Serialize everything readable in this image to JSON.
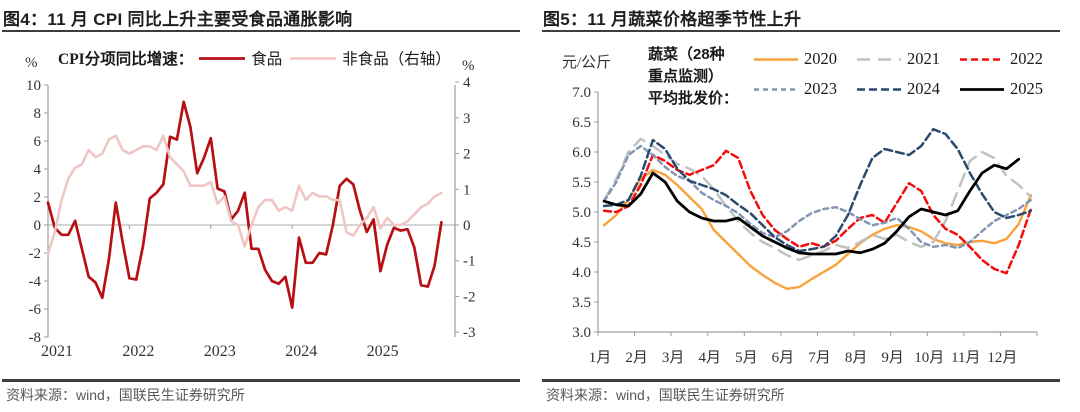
{
  "chart_data": [
    {
      "id": "cpi",
      "type": "line",
      "title": "图4：11 月 CPI 同比上升主要受食品通胀影响",
      "legend_title": "CPI分项同比增速：",
      "source": "资料来源：wind，国联民生证券研究所",
      "left_axis": {
        "unit": "%",
        "min": -8,
        "max": 10,
        "ticks": [
          10,
          8,
          6,
          4,
          2,
          0,
          -2,
          -4,
          -6,
          -8
        ]
      },
      "right_axis": {
        "unit": "%",
        "min": -3,
        "max": 4,
        "ticks": [
          4,
          3,
          2,
          1,
          0,
          -1,
          -2,
          -3
        ]
      },
      "x_ticks": [
        "2021",
        "2022",
        "2023",
        "2024",
        "2025"
      ],
      "x_note": "monthly values Jan-2021 through Nov-2025",
      "series": [
        {
          "name": "食品",
          "axis": "left",
          "color": "#B80F12",
          "width": 2.7,
          "dash": null,
          "values": [
            1.6,
            -0.2,
            -0.7,
            -0.7,
            0.3,
            -1.7,
            -3.7,
            -4.1,
            -5.2,
            -2.4,
            1.6,
            -1.2,
            -3.8,
            -3.9,
            -1.5,
            1.9,
            2.3,
            2.9,
            6.3,
            6.1,
            8.8,
            7.0,
            3.7,
            4.8,
            6.2,
            2.6,
            2.4,
            0.4,
            1.0,
            2.3,
            -1.7,
            -1.7,
            -3.2,
            -4.0,
            -4.2,
            -3.7,
            -5.9,
            -0.9,
            -2.7,
            -2.7,
            -2.0,
            -2.1,
            0.0,
            2.8,
            3.3,
            2.9,
            1.0,
            -0.5,
            0.4,
            -3.3,
            -1.4,
            -0.2,
            -0.4,
            -0.3,
            -1.6,
            -4.3,
            -4.4,
            -2.9,
            0.2
          ]
        },
        {
          "name": "非食品（右轴）",
          "axis": "right",
          "color": "#F0C6C4",
          "width": 2.6,
          "dash": null,
          "values": [
            -0.8,
            -0.2,
            0.7,
            1.3,
            1.6,
            1.7,
            2.1,
            1.9,
            2.0,
            2.4,
            2.5,
            2.1,
            2.0,
            2.1,
            2.2,
            2.2,
            2.1,
            2.5,
            1.9,
            1.7,
            1.5,
            1.1,
            1.1,
            1.1,
            1.2,
            0.6,
            0.8,
            0.1,
            0.0,
            -0.6,
            0.0,
            0.5,
            0.7,
            0.7,
            0.4,
            0.5,
            0.4,
            1.1,
            0.7,
            0.9,
            0.8,
            0.8,
            0.7,
            0.7,
            -0.2,
            -0.3,
            0.0,
            0.2,
            0.5,
            -0.1,
            0.2,
            0.0,
            0.0,
            0.1,
            0.3,
            0.5,
            0.6,
            0.8,
            0.9
          ]
        }
      ]
    },
    {
      "id": "veg",
      "type": "line",
      "title": "图5：11 月蔬菜价格超季节性上升",
      "legend_title": "蔬菜（28种重点监测）平均批发价：",
      "legend_title_lines": [
        "蔬菜（28种",
        "重点监测）",
        "平均批发价："
      ],
      "source": "资料来源：wind，国联民生证券研究所",
      "y_axis": {
        "unit": "元/公斤",
        "min": 3.0,
        "max": 7.0,
        "ticks": [
          7.0,
          6.5,
          6.0,
          5.5,
          5.0,
          4.5,
          4.0,
          3.5,
          3.0
        ]
      },
      "x_ticks": [
        "1月",
        "2月",
        "3月",
        "4月",
        "5月",
        "6月",
        "7月",
        "8月",
        "9月",
        "10月",
        "11月",
        "12月"
      ],
      "x_note": "approx. 3 readings per month (10-day averages), yuan per kg",
      "series": [
        {
          "name": "2020",
          "color": "#F9A23C",
          "width": 2.4,
          "dash": null,
          "values": [
            4.78,
            4.95,
            5.2,
            5.55,
            5.7,
            5.62,
            5.45,
            5.25,
            5.05,
            4.7,
            4.5,
            4.3,
            4.1,
            3.95,
            3.82,
            3.72,
            3.75,
            3.88,
            4.0,
            4.12,
            4.3,
            4.48,
            4.62,
            4.72,
            4.78,
            4.75,
            4.68,
            4.55,
            4.48,
            4.45,
            4.5,
            4.52,
            4.48,
            4.55,
            4.8,
            5.28
          ]
        },
        {
          "name": "2021",
          "color": "#C1C1C1",
          "width": 2.5,
          "dash": "13 8",
          "values": [
            5.2,
            5.55,
            6.0,
            6.22,
            6.1,
            5.95,
            5.8,
            5.72,
            5.6,
            5.38,
            5.1,
            4.85,
            4.65,
            4.5,
            4.4,
            4.28,
            4.2,
            4.28,
            4.35,
            4.45,
            4.4,
            4.5,
            4.62,
            4.55,
            4.62,
            4.5,
            4.42,
            4.5,
            4.85,
            5.35,
            5.85,
            6.0,
            5.9,
            5.6,
            5.45,
            5.25
          ]
        },
        {
          "name": "2022",
          "color": "#F20D0D",
          "width": 2.5,
          "dash": "7 4",
          "values": [
            5.02,
            5.0,
            5.1,
            5.45,
            5.95,
            5.85,
            5.7,
            5.62,
            5.7,
            5.78,
            6.02,
            5.9,
            5.35,
            4.95,
            4.7,
            4.55,
            4.42,
            4.48,
            4.42,
            4.52,
            4.72,
            4.9,
            4.95,
            4.82,
            5.15,
            5.48,
            5.35,
            4.95,
            4.72,
            4.62,
            4.42,
            4.2,
            4.05,
            3.98,
            4.45,
            5.05
          ]
        },
        {
          "name": "2023",
          "color": "#8296B4",
          "width": 2.5,
          "dash": "5 4",
          "values": [
            5.18,
            5.5,
            5.95,
            6.1,
            5.95,
            5.75,
            5.6,
            5.52,
            5.32,
            5.2,
            5.1,
            4.98,
            4.8,
            4.65,
            4.58,
            4.68,
            4.85,
            4.98,
            5.05,
            5.08,
            5.0,
            4.88,
            4.78,
            4.82,
            4.9,
            4.72,
            4.5,
            4.42,
            4.45,
            4.4,
            4.5,
            4.68,
            4.85,
            4.95,
            5.05,
            5.2
          ]
        },
        {
          "name": "2024",
          "color": "#2B4A6F",
          "width": 2.5,
          "dash": "8 4",
          "values": [
            5.1,
            5.12,
            5.2,
            5.6,
            6.2,
            6.05,
            5.72,
            5.52,
            5.45,
            5.38,
            5.28,
            5.12,
            4.98,
            4.78,
            4.58,
            4.45,
            4.35,
            4.38,
            4.42,
            4.6,
            4.95,
            5.45,
            5.9,
            6.05,
            6.0,
            5.95,
            6.1,
            6.38,
            6.3,
            6.05,
            5.65,
            5.3,
            5.0,
            4.9,
            4.95,
            5.02
          ]
        },
        {
          "name": "2025",
          "color": "#000000",
          "width": 2.8,
          "dash": null,
          "values": [
            5.18,
            5.12,
            5.1,
            5.3,
            5.65,
            5.5,
            5.18,
            5.0,
            4.9,
            4.85,
            4.85,
            4.9,
            4.75,
            4.6,
            4.5,
            4.4,
            4.32,
            4.3,
            4.3,
            4.3,
            4.35,
            4.32,
            4.38,
            4.48,
            4.68,
            4.92,
            5.05,
            5.0,
            4.95,
            5.02,
            5.35,
            5.65,
            5.78,
            5.72,
            5.88
          ]
        }
      ]
    }
  ],
  "style": {
    "axis_color": "#9C9C9C",
    "zero_line_color": "#ABABAB",
    "tick_label_color": "#333333",
    "title_color": "#1F1F1F",
    "rule_color": "#3D3D3D",
    "source_color": "#585858"
  }
}
